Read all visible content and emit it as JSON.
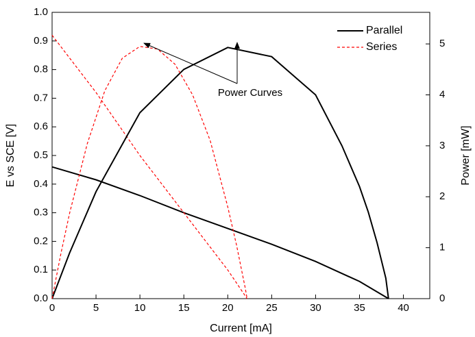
{
  "chart_data": {
    "type": "line",
    "x_label": "Current [mA]",
    "y_label": "E vs SCE [V]",
    "y2_label": "Power [mW]",
    "annotation": "Power Curves",
    "xlim": [
      0,
      43
    ],
    "xticks": [
      0,
      5,
      10,
      15,
      20,
      25,
      30,
      35,
      40
    ],
    "ylim": [
      0,
      1
    ],
    "yticks": [
      {
        "value": 0,
        "label": "0.0"
      },
      0.1,
      0.2,
      0.3,
      0.4,
      0.5,
      0.6,
      0.7,
      0.8,
      0.9,
      {
        "value": 1,
        "label": "1.0"
      }
    ],
    "y2lim": [
      0,
      5.62
    ],
    "y2ticks": [
      0,
      1,
      2,
      3,
      4,
      5
    ],
    "legend": "upper right",
    "series": [
      {
        "name": "Parallel",
        "color": "#000000",
        "dash": false,
        "x": [
          0,
          5,
          10,
          15,
          20,
          25,
          30,
          35,
          38.3
        ],
        "values": [
          0.46,
          0.415,
          0.36,
          0.3,
          0.245,
          0.19,
          0.13,
          0.06,
          0
        ]
      },
      {
        "name": "Series",
        "color": "#ff0000",
        "dash": true,
        "x": [
          0,
          5,
          10,
          15,
          20,
          22.2
        ],
        "values": [
          0.92,
          0.72,
          0.5,
          0.3,
          0.1,
          0
        ]
      },
      {
        "color": "#000000",
        "dash": false,
        "axis": "y2",
        "x": [
          0,
          2,
          5,
          10,
          15,
          20,
          25,
          28,
          30,
          33,
          35,
          36,
          37,
          38,
          38.3
        ],
        "values": [
          0,
          0.9,
          2.1,
          3.65,
          4.5,
          4.93,
          4.75,
          4.3,
          4.0,
          3.0,
          2.2,
          1.7,
          1.1,
          0.4,
          0
        ]
      },
      {
        "color": "#ff0000",
        "dash": true,
        "axis": "y2",
        "x": [
          0,
          1,
          2,
          4,
          6,
          8,
          10,
          12,
          14,
          16,
          18,
          20,
          21,
          22,
          22.2
        ],
        "values": [
          0,
          0.88,
          1.68,
          3.04,
          4.08,
          4.72,
          4.95,
          4.9,
          4.6,
          4.0,
          3.1,
          1.8,
          1.05,
          0.2,
          0
        ]
      }
    ]
  }
}
